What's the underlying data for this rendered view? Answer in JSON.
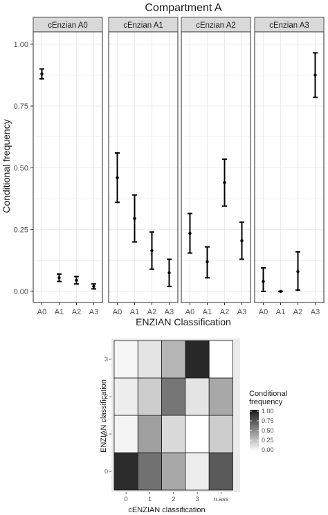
{
  "chart_data": [
    {
      "type": "errorbar",
      "title": "Compartment A",
      "xlabel": "ENZIAN Classification",
      "ylabel": "Conditional frequency",
      "ylim": [
        0,
        1.05
      ],
      "yticks": [
        0,
        0.25,
        0.5,
        0.75,
        1.0
      ],
      "ytick_labels": [
        "0.00",
        "0.25",
        "0.50",
        "0.75",
        "1.00"
      ],
      "categories": [
        "A0",
        "A1",
        "A2",
        "A3"
      ],
      "grid": true,
      "panels": [
        {
          "name": "cEnzian A0",
          "points": [
            {
              "x": "A0",
              "y": 0.88,
              "lo": 0.86,
              "hi": 0.9
            },
            {
              "x": "A1",
              "y": 0.055,
              "lo": 0.04,
              "hi": 0.07
            },
            {
              "x": "A2",
              "y": 0.045,
              "lo": 0.03,
              "hi": 0.06
            },
            {
              "x": "A3",
              "y": 0.02,
              "lo": 0.01,
              "hi": 0.03
            }
          ]
        },
        {
          "name": "cEnzian A1",
          "points": [
            {
              "x": "A0",
              "y": 0.46,
              "lo": 0.36,
              "hi": 0.56
            },
            {
              "x": "A1",
              "y": 0.295,
              "lo": 0.2,
              "hi": 0.39
            },
            {
              "x": "A2",
              "y": 0.165,
              "lo": 0.09,
              "hi": 0.24
            },
            {
              "x": "A3",
              "y": 0.075,
              "lo": 0.02,
              "hi": 0.13
            }
          ]
        },
        {
          "name": "cEnzian A2",
          "points": [
            {
              "x": "A0",
              "y": 0.235,
              "lo": 0.155,
              "hi": 0.315
            },
            {
              "x": "A1",
              "y": 0.12,
              "lo": 0.055,
              "hi": 0.18
            },
            {
              "x": "A2",
              "y": 0.44,
              "lo": 0.345,
              "hi": 0.535
            },
            {
              "x": "A3",
              "y": 0.205,
              "lo": 0.13,
              "hi": 0.28
            }
          ]
        },
        {
          "name": "cEnzian A3",
          "points": [
            {
              "x": "A0",
              "y": 0.04,
              "lo": 0.0,
              "hi": 0.095
            },
            {
              "x": "A1",
              "y": 0.0,
              "lo": 0.0,
              "hi": 0.0
            },
            {
              "x": "A2",
              "y": 0.08,
              "lo": 0.005,
              "hi": 0.16
            },
            {
              "x": "A3",
              "y": 0.875,
              "lo": 0.785,
              "hi": 0.965
            }
          ]
        }
      ],
      "colors": {
        "strip_bg": "#d9d9d9",
        "grid": "#ebebeb",
        "border": "#4d4d4d",
        "point": "#000000"
      }
    },
    {
      "type": "heatmap",
      "xlabel": "cENZIAN classification",
      "ylabel": "ENZIAN classification",
      "x": [
        "0",
        "1",
        "2",
        "3",
        "n.ass"
      ],
      "y": [
        "0",
        "1",
        "2",
        "3"
      ],
      "values": [
        [
          0.92,
          0.62,
          0.38,
          0.08,
          0.72
        ],
        [
          0.05,
          0.42,
          0.16,
          0.0,
          0.22
        ],
        [
          0.08,
          0.22,
          0.6,
          0.12,
          0.38
        ],
        [
          0.04,
          0.12,
          0.32,
          0.94,
          0.0
        ]
      ],
      "legend": {
        "title": "Conditional\nfrequency",
        "labels": [
          "1.00",
          "0.75",
          "0.50",
          "0.25",
          "0.00"
        ],
        "position": "right"
      },
      "colors": {
        "panel_bg": "#ebebeb",
        "low": "#ffffff",
        "high": "#1a1a1a"
      }
    }
  ]
}
